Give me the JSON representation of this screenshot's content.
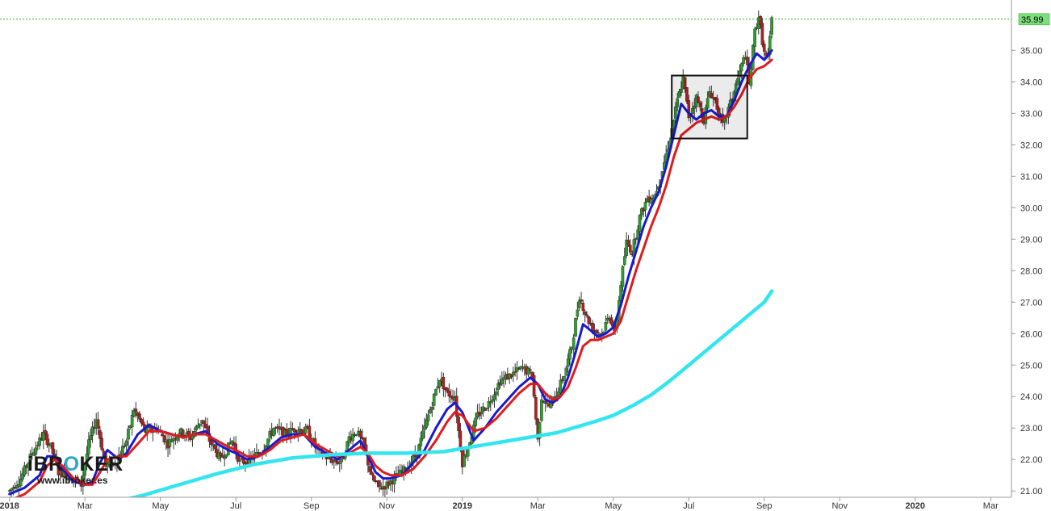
{
  "chart_data": {
    "type": "candlestick",
    "title": "",
    "xlabel": "",
    "ylabel": "",
    "ylim": [
      20.8,
      36.6
    ],
    "y_ticks": [
      "21.00",
      "22.00",
      "23.00",
      "24.00",
      "25.00",
      "26.00",
      "27.00",
      "28.00",
      "29.00",
      "30.00",
      "31.00",
      "32.00",
      "33.00",
      "34.00",
      "35.00"
    ],
    "x_ticks": [
      {
        "label": "2018",
        "month": 0,
        "bold": true
      },
      {
        "label": "Mar",
        "month": 2,
        "bold": false
      },
      {
        "label": "May",
        "month": 4,
        "bold": false
      },
      {
        "label": "Jul",
        "month": 6,
        "bold": false
      },
      {
        "label": "Sep",
        "month": 8,
        "bold": false
      },
      {
        "label": "Nov",
        "month": 10,
        "bold": false
      },
      {
        "label": "2019",
        "month": 12,
        "bold": true
      },
      {
        "label": "Mar",
        "month": 14,
        "bold": false
      },
      {
        "label": "May",
        "month": 16,
        "bold": false
      },
      {
        "label": "Jul",
        "month": 18,
        "bold": false
      },
      {
        "label": "Sep",
        "month": 20,
        "bold": false
      },
      {
        "label": "Nov",
        "month": 22,
        "bold": false
      },
      {
        "label": "2020",
        "month": 24,
        "bold": true
      },
      {
        "label": "Mar",
        "month": 26,
        "bold": false
      }
    ],
    "x_range_months": [
      -0.25,
      26.55
    ],
    "last_price": 35.99,
    "last_price_label": "35.99",
    "grid": false,
    "price_path": [
      [
        0.0,
        21.0
      ],
      [
        0.3,
        21.4
      ],
      [
        0.6,
        22.2
      ],
      [
        0.9,
        22.8
      ],
      [
        1.1,
        22.4
      ],
      [
        1.3,
        21.6
      ],
      [
        1.6,
        21.5
      ],
      [
        1.9,
        21.2
      ],
      [
        2.1,
        22.5
      ],
      [
        2.3,
        23.3
      ],
      [
        2.55,
        21.8
      ],
      [
        2.8,
        21.9
      ],
      [
        3.1,
        22.6
      ],
      [
        3.3,
        23.6
      ],
      [
        3.6,
        22.9
      ],
      [
        3.9,
        23.0
      ],
      [
        4.2,
        22.5
      ],
      [
        4.5,
        22.9
      ],
      [
        4.8,
        22.7
      ],
      [
        5.1,
        23.3
      ],
      [
        5.3,
        22.6
      ],
      [
        5.6,
        22.0
      ],
      [
        5.9,
        22.6
      ],
      [
        6.1,
        21.9
      ],
      [
        6.4,
        22.0
      ],
      [
        6.7,
        22.3
      ],
      [
        7.0,
        23.0
      ],
      [
        7.3,
        22.8
      ],
      [
        7.6,
        23.0
      ],
      [
        7.9,
        22.9
      ],
      [
        8.2,
        22.2
      ],
      [
        8.5,
        22.0
      ],
      [
        8.8,
        21.9
      ],
      [
        9.0,
        22.7
      ],
      [
        9.2,
        22.9
      ],
      [
        9.4,
        22.4
      ],
      [
        9.6,
        21.4
      ],
      [
        9.8,
        21.1
      ],
      [
        10.0,
        21.2
      ],
      [
        10.3,
        21.5
      ],
      [
        10.5,
        21.7
      ],
      [
        10.8,
        22.2
      ],
      [
        11.0,
        23.0
      ],
      [
        11.2,
        23.8
      ],
      [
        11.4,
        24.6
      ],
      [
        11.6,
        24.1
      ],
      [
        11.8,
        24.0
      ],
      [
        11.9,
        22.9
      ],
      [
        12.0,
        21.9
      ],
      [
        12.2,
        22.6
      ],
      [
        12.4,
        23.4
      ],
      [
        12.7,
        23.8
      ],
      [
        13.0,
        24.5
      ],
      [
        13.3,
        24.7
      ],
      [
        13.6,
        24.9
      ],
      [
        13.85,
        24.7
      ],
      [
        14.0,
        22.6
      ],
      [
        14.1,
        24.0
      ],
      [
        14.3,
        23.7
      ],
      [
        14.5,
        24.1
      ],
      [
        14.7,
        24.7
      ],
      [
        14.9,
        25.6
      ],
      [
        15.1,
        27.2
      ],
      [
        15.3,
        26.5
      ],
      [
        15.5,
        26.1
      ],
      [
        15.7,
        26.0
      ],
      [
        15.9,
        26.6
      ],
      [
        16.05,
        26.0
      ],
      [
        16.2,
        27.6
      ],
      [
        16.35,
        28.9
      ],
      [
        16.5,
        28.6
      ],
      [
        16.7,
        29.7
      ],
      [
        16.9,
        30.3
      ],
      [
        17.1,
        30.4
      ],
      [
        17.3,
        31.2
      ],
      [
        17.5,
        32.2
      ],
      [
        17.7,
        33.4
      ],
      [
        17.85,
        34.1
      ],
      [
        18.0,
        32.9
      ],
      [
        18.2,
        33.5
      ],
      [
        18.4,
        32.8
      ],
      [
        18.55,
        33.7
      ],
      [
        18.7,
        33.4
      ],
      [
        18.9,
        32.6
      ],
      [
        19.1,
        33.3
      ],
      [
        19.3,
        34.1
      ],
      [
        19.5,
        34.9
      ],
      [
        19.6,
        33.9
      ],
      [
        19.75,
        35.6
      ],
      [
        19.85,
        36.1
      ],
      [
        20.0,
        34.9
      ],
      [
        20.1,
        34.7
      ],
      [
        20.2,
        35.99
      ]
    ],
    "series": [
      {
        "role": "ma_fast",
        "color": "#1a1acc",
        "x": [
          0.0,
          0.4,
          0.8,
          1.0,
          1.2,
          1.4,
          1.7,
          2.0,
          2.2,
          2.4,
          2.6,
          2.9,
          3.1,
          3.4,
          3.7,
          4.0,
          4.3,
          4.6,
          4.9,
          5.2,
          5.5,
          5.8,
          6.0,
          6.3,
          6.6,
          6.9,
          7.2,
          7.5,
          7.8,
          8.1,
          8.4,
          8.7,
          9.0,
          9.3,
          9.5,
          9.7,
          9.9,
          10.1,
          10.4,
          10.7,
          11.0,
          11.3,
          11.6,
          11.8,
          12.0,
          12.3,
          12.6,
          12.9,
          13.2,
          13.5,
          13.8,
          14.0,
          14.2,
          14.4,
          14.6,
          14.8,
          15.0,
          15.2,
          15.4,
          15.6,
          15.8,
          16.0,
          16.2,
          16.4,
          16.6,
          16.8,
          17.0,
          17.2,
          17.4,
          17.6,
          17.8,
          18.0,
          18.2,
          18.4,
          18.6,
          18.8,
          19.0,
          19.2,
          19.4,
          19.6,
          19.8,
          20.0,
          20.2
        ],
        "y": [
          20.9,
          21.1,
          21.5,
          22.1,
          22.1,
          21.7,
          21.3,
          21.2,
          21.3,
          21.9,
          22.3,
          22.0,
          22.2,
          22.8,
          23.1,
          22.9,
          22.8,
          22.7,
          22.8,
          22.9,
          22.5,
          22.3,
          22.2,
          22.0,
          22.1,
          22.4,
          22.7,
          22.8,
          22.8,
          22.4,
          22.2,
          22.0,
          22.3,
          22.6,
          22.1,
          21.6,
          21.4,
          21.4,
          21.5,
          21.9,
          22.3,
          23.0,
          23.6,
          23.8,
          23.5,
          22.6,
          23.0,
          23.5,
          23.9,
          24.3,
          24.6,
          24.4,
          23.9,
          23.8,
          24.0,
          24.6,
          25.4,
          26.3,
          26.1,
          25.9,
          26.0,
          26.2,
          26.9,
          27.8,
          28.6,
          29.4,
          30.0,
          30.5,
          31.3,
          32.3,
          33.3,
          33.0,
          32.8,
          33.0,
          33.1,
          32.9,
          32.9,
          33.4,
          34.0,
          34.5,
          34.9,
          34.7,
          35.0
        ]
      },
      {
        "role": "ma_slow",
        "color": "#e01b1b",
        "x": [
          0.0,
          0.4,
          0.8,
          1.0,
          1.2,
          1.4,
          1.7,
          2.0,
          2.2,
          2.4,
          2.6,
          2.9,
          3.1,
          3.4,
          3.7,
          4.0,
          4.3,
          4.6,
          4.9,
          5.2,
          5.5,
          5.8,
          6.0,
          6.3,
          6.6,
          6.9,
          7.2,
          7.5,
          7.8,
          8.1,
          8.4,
          8.7,
          9.0,
          9.3,
          9.5,
          9.7,
          9.9,
          10.1,
          10.4,
          10.7,
          11.0,
          11.3,
          11.6,
          11.8,
          12.0,
          12.3,
          12.6,
          12.9,
          13.2,
          13.5,
          13.8,
          14.0,
          14.2,
          14.4,
          14.6,
          14.8,
          15.0,
          15.2,
          15.4,
          15.6,
          15.8,
          16.0,
          16.2,
          16.4,
          16.6,
          16.8,
          17.0,
          17.2,
          17.4,
          17.6,
          17.8,
          18.0,
          18.2,
          18.4,
          18.6,
          18.8,
          19.0,
          19.2,
          19.4,
          19.6,
          19.8,
          20.0,
          20.2
        ],
        "y": [
          20.7,
          20.9,
          21.3,
          21.8,
          22.0,
          21.8,
          21.4,
          21.2,
          21.2,
          21.6,
          22.0,
          22.1,
          22.1,
          22.5,
          22.9,
          22.9,
          22.8,
          22.7,
          22.8,
          22.8,
          22.6,
          22.4,
          22.3,
          22.1,
          22.1,
          22.3,
          22.6,
          22.7,
          22.8,
          22.5,
          22.3,
          22.1,
          22.2,
          22.4,
          22.2,
          21.8,
          21.6,
          21.5,
          21.5,
          21.7,
          22.1,
          22.6,
          23.2,
          23.5,
          23.4,
          22.9,
          23.0,
          23.3,
          23.7,
          24.1,
          24.4,
          24.4,
          24.1,
          23.9,
          24.0,
          24.3,
          24.9,
          25.6,
          25.8,
          25.8,
          25.9,
          26.0,
          26.4,
          27.2,
          28.0,
          28.7,
          29.4,
          30.0,
          30.7,
          31.6,
          32.3,
          32.5,
          32.7,
          32.8,
          32.9,
          32.8,
          32.9,
          33.2,
          33.6,
          34.1,
          34.4,
          34.5,
          34.7
        ]
      },
      {
        "role": "ma_long",
        "color": "#33e5ee",
        "x": [
          2.6,
          3.5,
          4.5,
          5.5,
          6.5,
          7.5,
          8.5,
          9.5,
          10.5,
          11.5,
          12.5,
          13.5,
          14.5,
          15.5,
          16.0,
          16.5,
          17.0,
          17.5,
          18.0,
          18.5,
          19.0,
          19.5,
          20.0,
          20.2
        ],
        "y": [
          20.6,
          20.85,
          21.2,
          21.55,
          21.85,
          22.05,
          22.15,
          22.2,
          22.2,
          22.25,
          22.45,
          22.65,
          22.85,
          23.2,
          23.4,
          23.7,
          24.05,
          24.5,
          25.0,
          25.5,
          26.0,
          26.5,
          27.0,
          27.35
        ]
      }
    ],
    "annotations": [
      {
        "shape": "rectangle",
        "x0": 17.55,
        "x1": 19.55,
        "y0": 32.2,
        "y1": 34.2
      }
    ]
  },
  "watermark": {
    "brand_left": "iBR",
    "brand_o": "O",
    "brand_right": "KER",
    "url": "www.ibroker.es"
  },
  "colors": {
    "candle_up": "#2e9e2e",
    "candle_down": "#b52020",
    "wick": "#333333",
    "price_line": "#22bb22",
    "price_tag_bg": "#7be07b",
    "axis": "#999999"
  }
}
